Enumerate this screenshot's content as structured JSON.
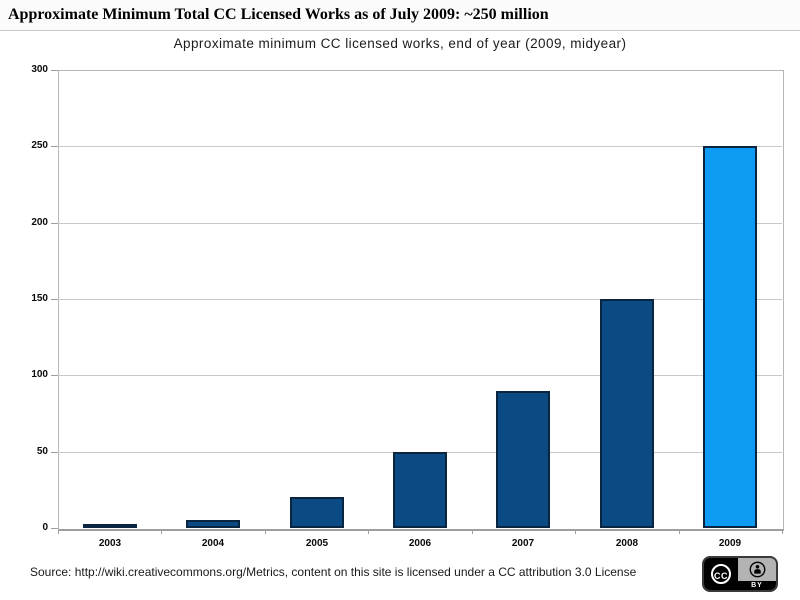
{
  "page": {
    "header_title": "Approximate Minimum Total CC Licensed Works as of July 2009: ~250 million",
    "footer_text": "Source: http://wiki.creativecommons.org/Metrics,  content on this site is licensed under a CC attribution 3.0 License"
  },
  "cc_badge": {
    "cc_label": "CC",
    "by_label": "BY"
  },
  "chart_data": {
    "type": "bar",
    "title": "Approximate minimum CC licensed works, end of year (2009, midyear)",
    "categories": [
      "2003",
      "2004",
      "2005",
      "2006",
      "2007",
      "2008",
      "2009"
    ],
    "values": [
      1,
      5,
      20,
      50,
      90,
      150,
      250
    ],
    "unit": "million works",
    "xlabel": "",
    "ylabel": "",
    "ylim": [
      0,
      300
    ],
    "yticks": [
      0,
      50,
      100,
      150,
      200,
      250,
      300
    ],
    "grid": "horizontal",
    "legend": "none",
    "bar_colors": [
      "#0b4a82",
      "#0b4a82",
      "#0b4a82",
      "#0b4a82",
      "#0b4a82",
      "#0b4a82",
      "#0d9bf4"
    ],
    "bar_border_color": "#0a2540",
    "grid_color": "#c9c9c9",
    "axis_color": "#9e9e9e"
  }
}
